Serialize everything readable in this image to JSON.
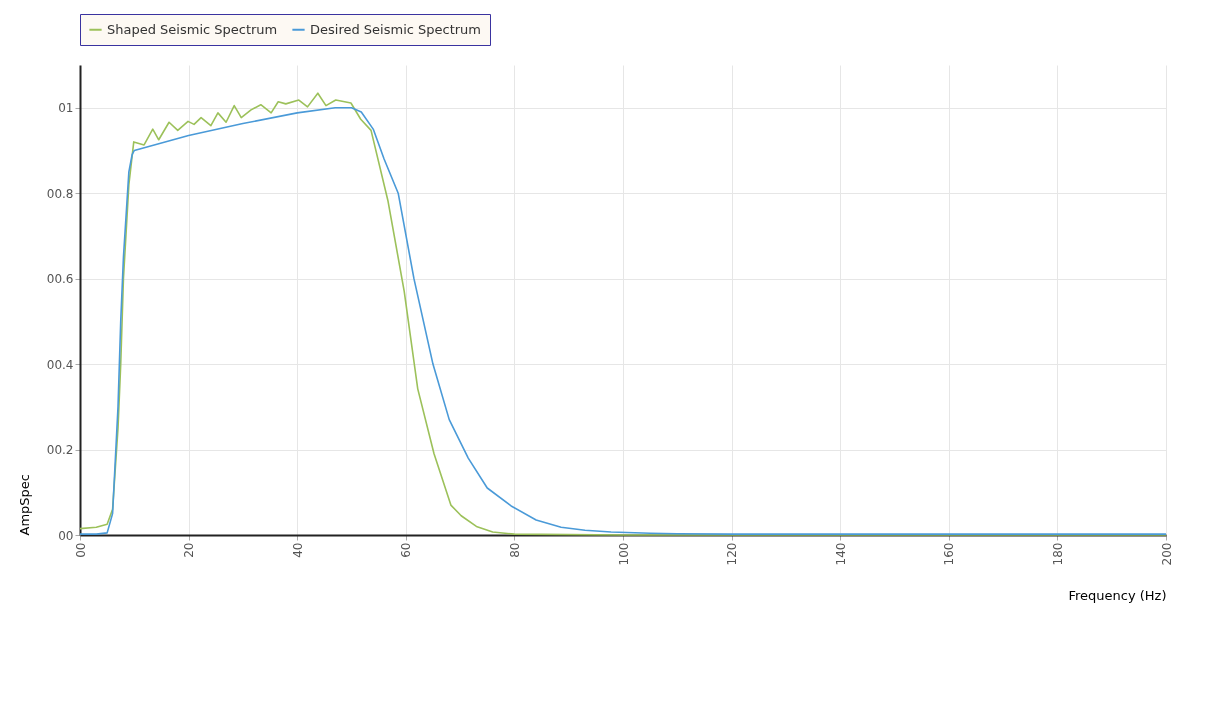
{
  "chart_data": {
    "type": "line",
    "xlabel": "Frequency (Hz)",
    "ylabel": "AmpSpec",
    "xlim": [
      0,
      200
    ],
    "ylim": [
      0,
      1.1
    ],
    "xticks": [
      {
        "value": 0,
        "label": "00"
      },
      20,
      40,
      60,
      80,
      100,
      120,
      140,
      160,
      180,
      200
    ],
    "yticks": [
      {
        "value": 0,
        "label": "00"
      },
      {
        "value": 0.2,
        "label": "00.2"
      },
      {
        "value": 0.4,
        "label": "00.4"
      },
      {
        "value": 0.6,
        "label": "00.6"
      },
      {
        "value": 0.8,
        "label": "00.8"
      },
      {
        "value": 1,
        "label": "01"
      }
    ],
    "grid": true,
    "legend": "top",
    "marker": "none",
    "line_style": "solid",
    "series": [
      {
        "name": "Shaped Seismic Spectrum",
        "color": "#9cc15a",
        "x": [
          0,
          3,
          5,
          6,
          7,
          7.5,
          8,
          9,
          9.9,
          11.8,
          13.4,
          14.5,
          16.4,
          18,
          19.9,
          21,
          22.3,
          24.1,
          25.4,
          26.9,
          28.4,
          29.7,
          31.5,
          33.3,
          35.2,
          36.5,
          37.9,
          40.3,
          41.9,
          43.8,
          45.3,
          47.1,
          49.9,
          51.7,
          53.6,
          56.7,
          59.7,
          62.2,
          65.2,
          68.3,
          70.2,
          73,
          76,
          80,
          100,
          150,
          200
        ],
        "values": [
          0.015,
          0.018,
          0.025,
          0.06,
          0.25,
          0.4,
          0.6,
          0.82,
          0.92,
          0.913,
          0.95,
          0.925,
          0.966,
          0.947,
          0.968,
          0.961,
          0.977,
          0.958,
          0.988,
          0.966,
          1.005,
          0.977,
          0.995,
          1.007,
          0.988,
          1.014,
          1.009,
          1.018,
          1.002,
          1.034,
          1.005,
          1.018,
          1.011,
          0.973,
          0.947,
          0.783,
          0.571,
          0.342,
          0.19,
          0.07,
          0.045,
          0.02,
          0.007,
          0.002,
          0,
          0,
          0
        ]
      },
      {
        "name": "Desired Seismic Spectrum",
        "color": "#4a9ad8",
        "x": [
          0,
          3,
          5,
          6,
          7,
          7.5,
          8,
          9,
          9.6,
          10,
          20,
          30,
          40,
          47,
          50,
          51.8,
          54,
          56,
          58.6,
          61.5,
          65,
          68,
          71.5,
          75,
          79.4,
          84,
          88.6,
          93,
          97.8,
          105,
          110,
          120,
          150,
          200
        ],
        "values": [
          0.002,
          0.002,
          0.005,
          0.05,
          0.3,
          0.5,
          0.65,
          0.85,
          0.89,
          0.9,
          0.935,
          0.963,
          0.988,
          1.0,
          1.0,
          0.99,
          0.95,
          0.88,
          0.8,
          0.6,
          0.4,
          0.27,
          0.18,
          0.11,
          0.068,
          0.035,
          0.018,
          0.011,
          0.007,
          0.004,
          0.003,
          0.002,
          0.002,
          0.002
        ]
      }
    ]
  }
}
